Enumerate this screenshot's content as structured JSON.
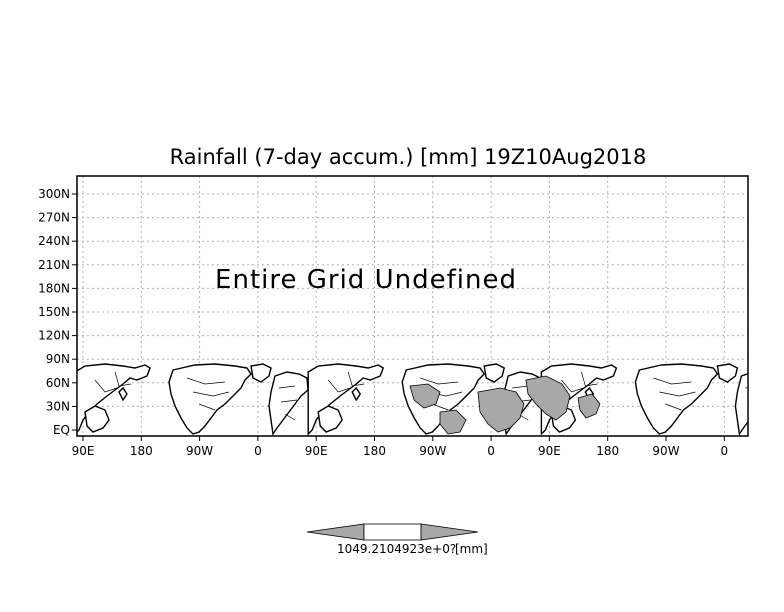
{
  "title": "Rainfall (7-day accum.) [mm] 19Z10Aug2018",
  "message": "Entire Grid Undefined",
  "y_axis_labels": [
    "300N",
    "270N",
    "240N",
    "210N",
    "180N",
    "150N",
    "120N",
    "90N",
    "60N",
    "30N",
    "EQ"
  ],
  "x_axis_labels": [
    "90E",
    "180",
    "90W",
    "0",
    "90E",
    "180",
    "90W",
    "0",
    "90E",
    "180",
    "90W",
    "0"
  ],
  "colorbar": {
    "labels_overlap": "1049.2104923e+0?",
    "unit": "[mm]",
    "fill_color": "#a8a8a8"
  },
  "colors": {
    "land_outline": "#000000",
    "grid": "#b0b0b0",
    "shaded": "#a8a8a8"
  }
}
